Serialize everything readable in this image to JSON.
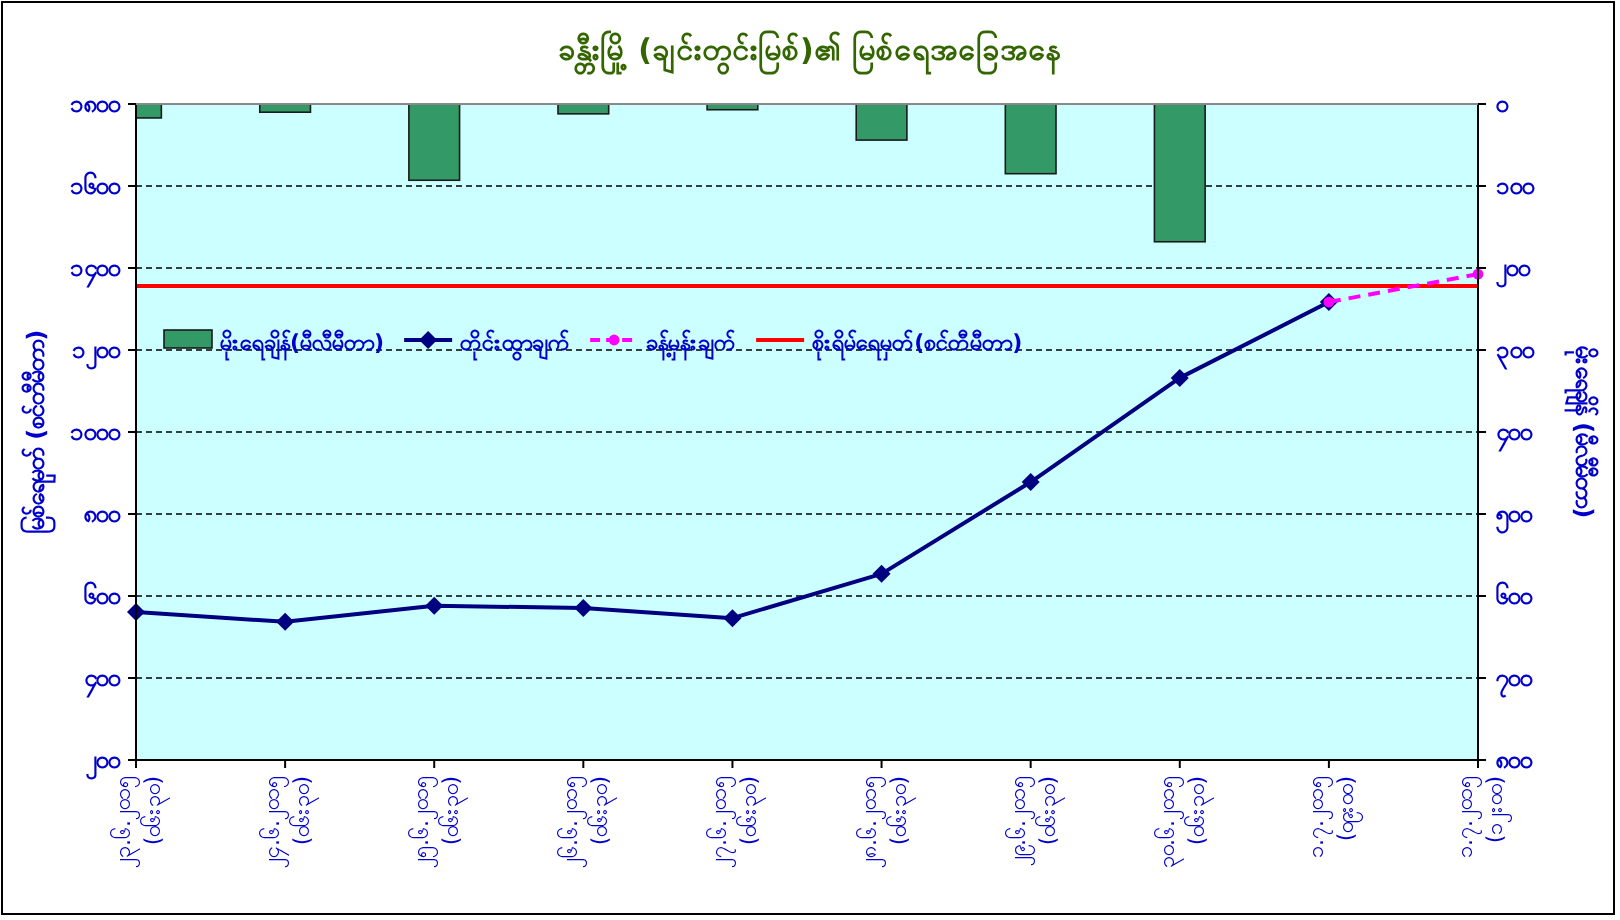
{
  "chart_data": {
    "type": "bar",
    "title": "ခန္တီးမြို့ (ချင်းတွင်းမြစ်)၏ မြစ်ရေအခြေအနေ",
    "ylabel": "မြစ်ရေမှတ် (စင်တီမီတာ)",
    "y2label": "မိုးရေချိန် (မီလီမီတာ)",
    "categories": [
      "၂၃.၆.၂၀၁၅ (၀၆း၃၀)",
      "၂၄.၆.၂၀၁၅ (၀၆း၃၀)",
      "၂၅.၆.၂၀၁၅ (၀၆း၃၀)",
      "၂၆.၆.၂၀၁၅ (၀၆း၃၀)",
      "၂၇.၆.၂၀၁၅ (၀၆း၃၀)",
      "၂၈.၆.၂၀၁၅ (၀၆း၃၀)",
      "၂၉.၆.၂၀၁၅ (၀၆း၃၀)",
      "၃၀.၆.၂၀၁၅ (၀၆း၃၀)",
      "၁.၇.၂၀၁၅ (၀၉း၀၀)",
      "၁.၇.၂၀၁၅ (၁၂း၀၀)"
    ],
    "ylim": [
      200,
      1800
    ],
    "yticks": [
      {
        "value": 200,
        "label": "၂၀၀"
      },
      {
        "value": 400,
        "label": "၄၀၀"
      },
      {
        "value": 600,
        "label": "၆၀၀"
      },
      {
        "value": 800,
        "label": "၈၀၀"
      },
      {
        "value": 1000,
        "label": "၁၀၀၀"
      },
      {
        "value": 1200,
        "label": "၁၂၀၀"
      },
      {
        "value": 1400,
        "label": "၁၄၀၀"
      },
      {
        "value": 1600,
        "label": "၁၆၀၀"
      },
      {
        "value": 1800,
        "label": "၁၈၀၀"
      }
    ],
    "y2lim": [
      800,
      0
    ],
    "y2ticks": [
      {
        "value": 0,
        "label": "၀"
      },
      {
        "value": 100,
        "label": "၁၀၀"
      },
      {
        "value": 200,
        "label": "၂၀၀"
      },
      {
        "value": 300,
        "label": "၃၀၀"
      },
      {
        "value": 400,
        "label": "၄၀၀"
      },
      {
        "value": 500,
        "label": "၅၀၀"
      },
      {
        "value": 600,
        "label": "၆၀၀"
      },
      {
        "value": 700,
        "label": "၇၀၀"
      },
      {
        "value": 800,
        "label": "၈၀၀"
      }
    ],
    "grid": "y",
    "legend": "left",
    "series": [
      {
        "name": "မိုးရေချိန်(မီလီမီတာ)",
        "type": "bar",
        "axis": "y2",
        "color": "#339966",
        "values": [
          17,
          10,
          93,
          12,
          7,
          44,
          85,
          168,
          null,
          null
        ]
      },
      {
        "name": "တိုင်းထွာချက်",
        "type": "line",
        "color": "#000080",
        "marker": "diamond",
        "values": [
          561,
          537,
          576,
          571,
          546,
          654,
          878,
          1132,
          1317,
          null
        ]
      },
      {
        "name": "ခန့်မှန်းချက်",
        "type": "line",
        "color": "#ff00ff",
        "marker": "circle",
        "line_style": "dashed",
        "values": [
          null,
          null,
          null,
          null,
          null,
          null,
          null,
          null,
          1317,
          1385
        ]
      }
    ],
    "ref_lines": [
      {
        "axis": "y",
        "value": 1356,
        "label": "စိုးရိမ်ရေမှတ်(စင်တီမီတာ)",
        "color": "#ff0000"
      }
    ]
  }
}
